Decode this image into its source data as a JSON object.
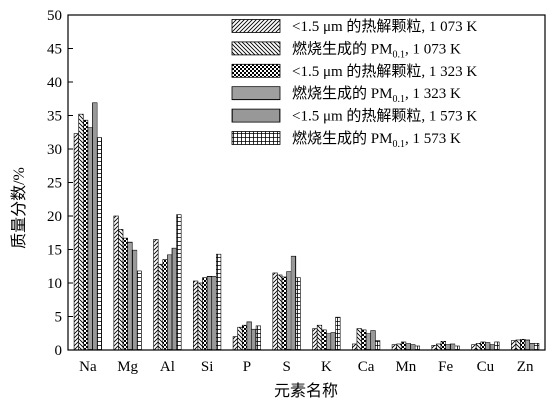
{
  "chart_data": {
    "type": "bar",
    "xlabel": "元素名称",
    "ylabel": "质量分数/%",
    "ylim": [
      0,
      50
    ],
    "yticks": [
      0,
      5,
      10,
      15,
      20,
      25,
      30,
      35,
      40,
      45,
      50
    ],
    "categories": [
      "Na",
      "Mg",
      "Al",
      "Si",
      "P",
      "S",
      "K",
      "Ca",
      "Mn",
      "Fe",
      "Cu",
      "Zn"
    ],
    "legend_position": "top-right",
    "grid": false,
    "series": [
      {
        "name": "<1.5 μm 的热解颗粒, 1 073 K",
        "legend_parts": [
          "<1.5 μm 的热解颗粒, 1 073 K"
        ],
        "pattern": "diag-right",
        "values": [
          32.3,
          20.0,
          16.5,
          10.3,
          2.0,
          11.5,
          3.2,
          0.9,
          0.8,
          0.7,
          0.8,
          1.4
        ]
      },
      {
        "name": "燃烧生成的 PM0.1, 1 073 K",
        "legend_parts": [
          "燃烧生成的 PM",
          "0.1",
          ", 1 073 K"
        ],
        "pattern": "diag-left",
        "values": [
          35.2,
          18.0,
          12.8,
          10.0,
          3.4,
          11.2,
          3.7,
          3.2,
          0.9,
          0.9,
          1.0,
          1.5
        ]
      },
      {
        "name": "<1.5 μm 的热解颗粒, 1 323 K",
        "legend_parts": [
          "<1.5 μm 的热解颗粒, 1 323 K"
        ],
        "pattern": "checker",
        "values": [
          34.3,
          16.7,
          13.5,
          10.8,
          3.7,
          10.9,
          3.0,
          3.0,
          1.2,
          1.3,
          1.2,
          1.6
        ]
      },
      {
        "name": "燃烧生成的 PM0.1, 1 323 K",
        "legend_parts": [
          "燃烧生成的 PM",
          "0.1",
          ", 1 323 K"
        ],
        "pattern": "horizontal",
        "values": [
          33.2,
          16.1,
          14.2,
          11.0,
          4.2,
          11.7,
          2.5,
          2.5,
          1.0,
          0.8,
          1.1,
          1.5
        ]
      },
      {
        "name": "<1.5 μm 的热解颗粒, 1 573 K",
        "legend_parts": [
          "<1.5 μm 的热解颗粒, 1 573 K"
        ],
        "pattern": "vertical",
        "values": [
          36.9,
          14.9,
          15.2,
          11.0,
          3.1,
          14.0,
          2.6,
          2.9,
          0.8,
          0.9,
          0.8,
          1.0
        ]
      },
      {
        "name": "燃烧生成的 PM0.1, 1 573 K",
        "legend_parts": [
          "燃烧生成的 PM",
          "0.1",
          ", 1 573 K"
        ],
        "pattern": "grid",
        "values": [
          31.7,
          11.8,
          20.2,
          14.3,
          3.6,
          10.8,
          4.9,
          1.4,
          0.6,
          0.6,
          1.2,
          1.0
        ]
      }
    ]
  }
}
